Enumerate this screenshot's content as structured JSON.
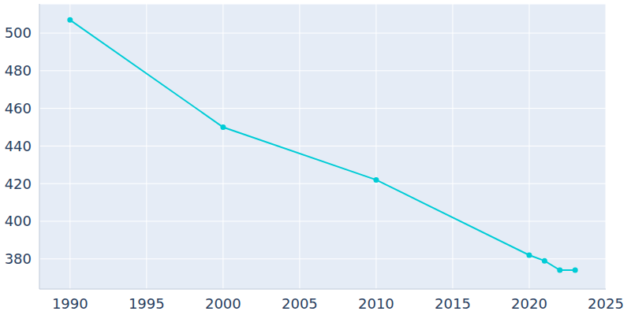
{
  "chart_data": {
    "type": "line",
    "x": [
      1990,
      2000,
      2010,
      2020,
      2021,
      2022,
      2023
    ],
    "values": [
      507,
      450,
      422,
      382,
      379,
      374,
      374
    ],
    "color": "#00ccd6",
    "marker": "circle",
    "xlim": [
      1988,
      2025
    ],
    "xticks": [
      1990,
      1995,
      2000,
      2005,
      2010,
      2015,
      2020,
      2025
    ],
    "ylim": [
      364,
      515.5
    ],
    "yticks": [
      380,
      400,
      420,
      440,
      460,
      480,
      500
    ],
    "grid": true
  }
}
